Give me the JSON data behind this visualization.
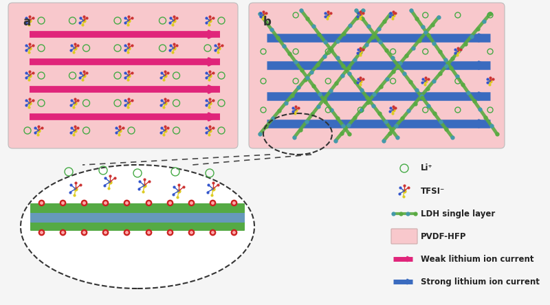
{
  "bg_color": "#f5f5f5",
  "panel_bg": "#f8c8cc",
  "arrow_pink": "#e0257a",
  "arrow_blue": "#3a6bbf",
  "green_ldh": "#5aaa42",
  "teal_ldh": "#4499aa",
  "panel_a_label": "a",
  "panel_b_label": "b",
  "legend_li": "Li⁺",
  "legend_tfsi": "TFSI⁻",
  "legend_ldh": "LDH single layer",
  "legend_pvdf": "PVDF-HFP",
  "legend_weak": "Weak lithium ion current",
  "legend_strong": "Strong lithium ion current"
}
